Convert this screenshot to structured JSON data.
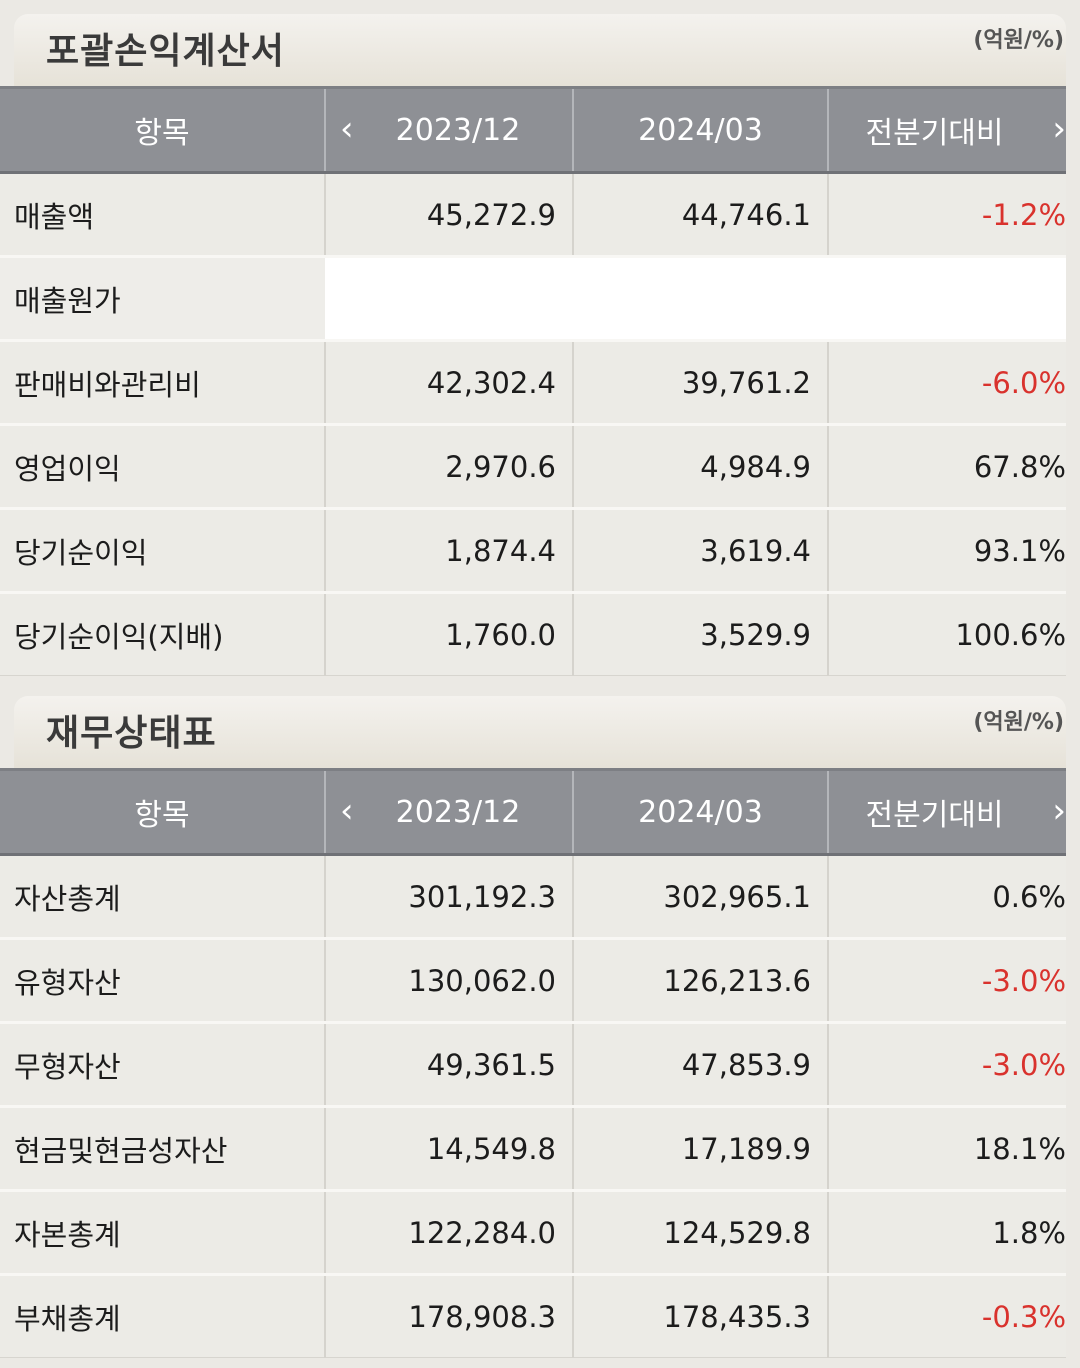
{
  "income_statement": {
    "title": "포괄손익계산서",
    "unit": "(억원/%)",
    "headers": {
      "item": "항목",
      "period1": "2023/12",
      "period2": "2024/03",
      "change": "전분기대비",
      "prev_icon": "chevron-left-icon",
      "next_icon": "chevron-right-icon"
    },
    "rows": [
      {
        "label": "매출액",
        "p1": "45,272.9",
        "p2": "44,746.1",
        "change": "-1.2%",
        "negative": true
      },
      {
        "label": "매출원가",
        "p1": "",
        "p2": "",
        "change": "",
        "negative": false
      },
      {
        "label": "판매비와관리비",
        "p1": "42,302.4",
        "p2": "39,761.2",
        "change": "-6.0%",
        "negative": true
      },
      {
        "label": "영업이익",
        "p1": "2,970.6",
        "p2": "4,984.9",
        "change": "67.8%",
        "negative": false
      },
      {
        "label": "당기순이익",
        "p1": "1,874.4",
        "p2": "3,619.4",
        "change": "93.1%",
        "negative": false
      },
      {
        "label": "당기순이익(지배)",
        "p1": "1,760.0",
        "p2": "3,529.9",
        "change": "100.6%",
        "negative": false
      }
    ]
  },
  "balance_sheet": {
    "title": "재무상태표",
    "unit": "(억원/%)",
    "headers": {
      "item": "항목",
      "period1": "2023/12",
      "period2": "2024/03",
      "change": "전분기대비",
      "prev_icon": "chevron-left-icon",
      "next_icon": "chevron-right-icon"
    },
    "rows": [
      {
        "label": "자산총계",
        "p1": "301,192.3",
        "p2": "302,965.1",
        "change": "0.6%",
        "negative": false
      },
      {
        "label": "유형자산",
        "p1": "130,062.0",
        "p2": "126,213.6",
        "change": "-3.0%",
        "negative": true
      },
      {
        "label": "무형자산",
        "p1": "49,361.5",
        "p2": "47,853.9",
        "change": "-3.0%",
        "negative": true
      },
      {
        "label": "현금및현금성자산",
        "p1": "14,549.8",
        "p2": "17,189.9",
        "change": "18.1%",
        "negative": false
      },
      {
        "label": "자본총계",
        "p1": "122,284.0",
        "p2": "124,529.8",
        "change": "1.8%",
        "negative": false
      },
      {
        "label": "부채총계",
        "p1": "178,908.3",
        "p2": "178,435.3",
        "change": "-0.3%",
        "negative": true
      }
    ]
  },
  "colors": {
    "negative": "#d9322d",
    "header_bg": "#8e9095",
    "cell_bg": "#ecebe6"
  }
}
